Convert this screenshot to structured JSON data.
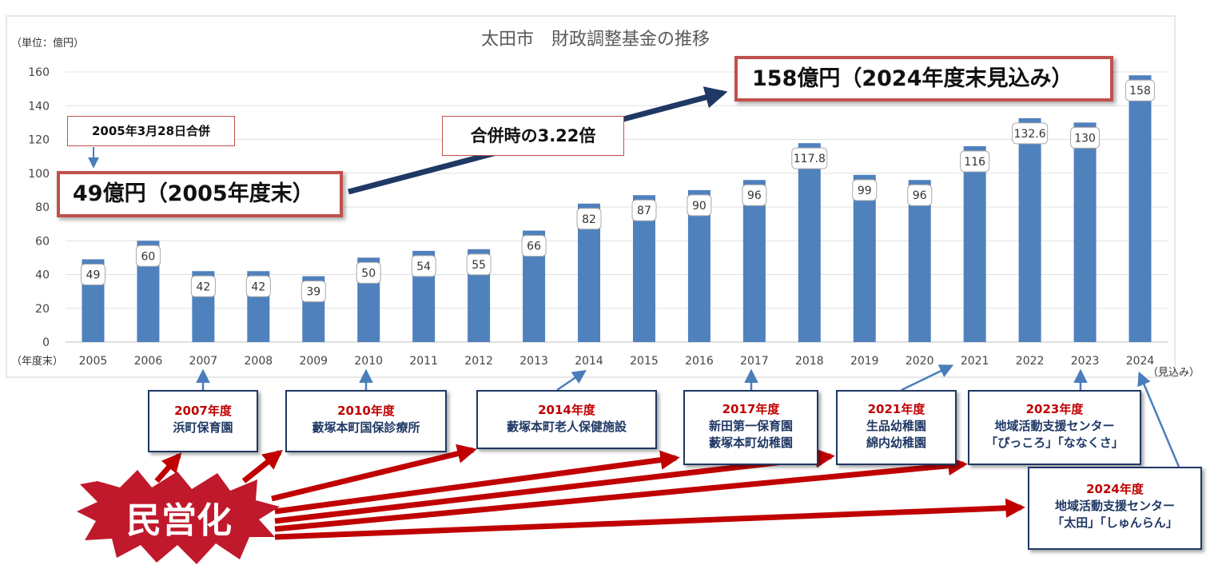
{
  "chart_data": {
    "type": "bar",
    "title": "太田市　財政調整基金の推移",
    "unit_label": "（単位：億円）",
    "x_axis_label": "（年度末）",
    "x_suffix_label": "（見込み）",
    "categories": [
      "2005",
      "2006",
      "2007",
      "2008",
      "2009",
      "2010",
      "2011",
      "2012",
      "2013",
      "2014",
      "2015",
      "2016",
      "2017",
      "2018",
      "2019",
      "2020",
      "2021",
      "2022",
      "2023",
      "2024"
    ],
    "values": [
      49,
      60,
      42,
      42,
      39,
      50,
      54,
      55,
      66,
      82,
      87,
      90,
      96,
      117.8,
      99,
      96,
      116,
      132.6,
      130,
      158
    ],
    "value_labels": [
      "49",
      "60",
      "42",
      "42",
      "39",
      "50",
      "54",
      "55",
      "66",
      "82",
      "87",
      "90",
      "96",
      "117.8",
      "99",
      "96",
      "116",
      "132.6",
      "130",
      "158"
    ],
    "ylim": [
      0,
      160
    ],
    "yticks": [
      "0",
      "20",
      "40",
      "60",
      "80",
      "100",
      "120",
      "140",
      "160"
    ],
    "grid": true,
    "bar_color": "#4f81bd"
  },
  "annotations": {
    "merger_date": "2005年3月28日合併",
    "start_value": "49億円（2005年度末）",
    "ratio": "合併時の3.22倍",
    "end_value": "158億円（2024年度末見込み）",
    "privatization": "民営化"
  },
  "facilities": [
    {
      "year": "2007年度",
      "lines": [
        "浜町保育園"
      ]
    },
    {
      "year": "2010年度",
      "lines": [
        "藪塚本町国保診療所"
      ]
    },
    {
      "year": "2014年度",
      "lines": [
        "藪塚本町老人保健施設"
      ]
    },
    {
      "year": "2017年度",
      "lines": [
        "新田第一保育園",
        "藪塚本町幼稚園"
      ]
    },
    {
      "year": "2021年度",
      "lines": [
        "生品幼稚園",
        "綿内幼稚園"
      ]
    },
    {
      "year": "2023年度",
      "lines": [
        "地域活動支援センター",
        "「ぴっころ」「ななくさ」"
      ]
    },
    {
      "year": "2024年度",
      "lines": [
        "地域活動支援センター",
        "「太田」「しゅんらん」"
      ]
    }
  ],
  "colors": {
    "bar": "#4f81bd",
    "dark_arrow": "#1f3864",
    "red": "#c00000",
    "callout_border": "#c0504d",
    "thin_arrow": "#4a7ebb"
  }
}
